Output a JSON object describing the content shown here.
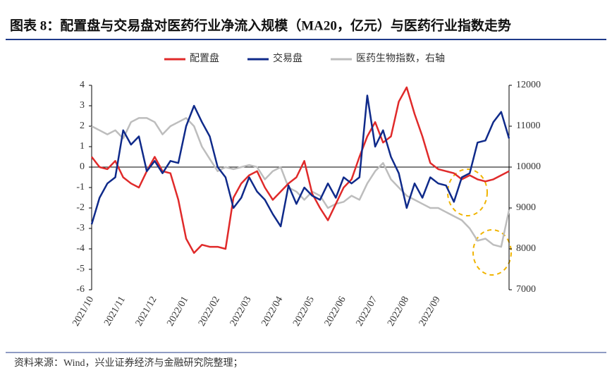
{
  "chart_data": {
    "type": "line",
    "title": "图表 8：配置盘与交易盘对医药行业净流入规模（MA20，亿元）与医药行业指数走势",
    "source": "资料来源：Wind，兴业证券经济与金融研究院整理；",
    "legend_position": "top",
    "categories": [
      "2021/10",
      null,
      null,
      null,
      "2021/11",
      null,
      null,
      null,
      "2021/12",
      null,
      null,
      null,
      "2022/01",
      null,
      null,
      null,
      "2022/02",
      null,
      null,
      null,
      "2022/03",
      null,
      null,
      null,
      "2022/04",
      null,
      null,
      null,
      "2022/05",
      null,
      null,
      null,
      "2022/06",
      null,
      null,
      null,
      "2022/07",
      null,
      null,
      null,
      "2022/08",
      null,
      null,
      null,
      "2022/09",
      null,
      null,
      null,
      null,
      null,
      null,
      null,
      null,
      null
    ],
    "series": [
      {
        "name": "配置盘",
        "color": "#e02a2a",
        "values": [
          0.5,
          0,
          -0.1,
          0.3,
          -0.5,
          -0.8,
          -1,
          -0.2,
          0.5,
          -0.2,
          -0.3,
          -1.6,
          -3.5,
          -4.2,
          -3.8,
          -3.9,
          -3.9,
          -4,
          -1.5,
          -0.8,
          -0.4,
          -0.2,
          -1,
          -1.6,
          -1.2,
          -0.8,
          -0.5,
          0.3,
          -1.3,
          -2,
          -2.6,
          -1.8,
          -1,
          -0.6,
          0.5,
          1.5,
          2.2,
          1.2,
          1.5,
          3.2,
          3.9,
          2.6,
          1.5,
          0.2,
          -0.1,
          -0.2,
          -0.3,
          -0.6,
          -0.4,
          -0.6,
          -0.7,
          -0.6,
          -0.4,
          -0.2
        ]
      },
      {
        "name": "交易盘",
        "color": "#0f2a8a",
        "values": [
          -2.8,
          -1.5,
          -0.8,
          -0.5,
          1.8,
          1.1,
          1.5,
          -0.2,
          0.3,
          -0.3,
          0.3,
          0.2,
          2,
          3,
          2.2,
          1.5,
          0,
          -0.5,
          -2,
          -1.5,
          -0.5,
          -1.2,
          -1.6,
          -2.3,
          -2.9,
          -0.9,
          -1.8,
          -1,
          -1.4,
          -1.6,
          -0.8,
          -1.5,
          -0.5,
          -0.8,
          -0.5,
          3.5,
          1,
          1.8,
          0.5,
          -0.3,
          -2,
          -0.8,
          -1.5,
          -0.5,
          -0.8,
          -0.9,
          -1.7,
          -0.5,
          -0.3,
          1.2,
          1.3,
          2.2,
          2.7,
          1.4
        ]
      },
      {
        "name": "医药生物指数，右轴",
        "color": "#bdbdbd",
        "axis": "y2",
        "values": [
          11000,
          10900,
          10800,
          10900,
          10700,
          11100,
          11200,
          11200,
          11100,
          10800,
          11000,
          11100,
          11200,
          11000,
          10500,
          10200,
          9900,
          10000,
          9950,
          10000,
          10050,
          10000,
          9700,
          9900,
          10000,
          9500,
          9400,
          9200,
          9400,
          9300,
          9000,
          9100,
          9150,
          9300,
          9200,
          9600,
          9900,
          10100,
          9700,
          9500,
          9300,
          9200,
          9100,
          9000,
          9000,
          8900,
          8800,
          8700,
          8500,
          8200,
          8250,
          8100,
          8050,
          8950
        ]
      }
    ],
    "ylim": [
      -6,
      4
    ],
    "yticks": [
      -6,
      -5,
      -4,
      -3,
      -2,
      -1,
      0,
      1,
      2,
      3,
      4
    ],
    "y2lim": [
      7000,
      12000
    ],
    "y2ticks": [
      7000,
      8000,
      9000,
      10000,
      11000,
      12000
    ]
  }
}
